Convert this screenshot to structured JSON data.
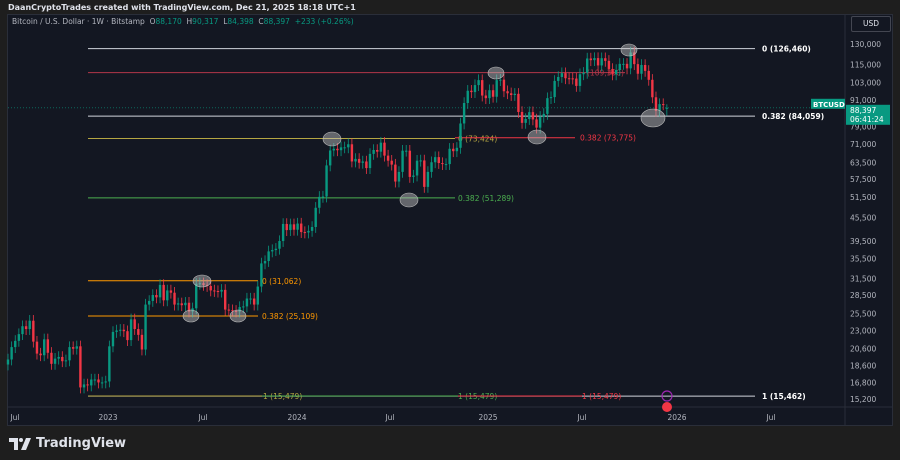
{
  "header": {
    "credit": "DaanCryptoTrades created with TradingView.com, Dec 21, 2025 18:18 UTC+1"
  },
  "legend": {
    "symbol": "Bitcoin / U.S. Dollar · 1W · Bitstamp",
    "o_label": "O",
    "o": "88,170",
    "h_label": "H",
    "h": "90,317",
    "l_label": "L",
    "l": "84,398",
    "c_label": "C",
    "c": "88,397",
    "change": "+233 (+0.26%)"
  },
  "currency_button": "USD",
  "price_tag": {
    "symbol": "BTCUSD",
    "price": "88,397",
    "countdown": "06:41:24"
  },
  "branding": {
    "logo_text": "TradingView"
  },
  "colors": {
    "background": "#131722",
    "up": "#089981",
    "down": "#f23645",
    "fib_white": "#d1d4dc",
    "fib_red": "#b2374a",
    "fib_olive": "#b5a642",
    "fib_green": "#4caf50",
    "fib_orange": "#ff9800"
  },
  "chart_data": {
    "type": "candlestick",
    "title": "Bitcoin / U.S. Dollar · 1W · Bitstamp",
    "y_scale": "log",
    "ylim": [
      14500,
      140000
    ],
    "y_ticks": [
      "130,000",
      "115,000",
      "103,000",
      "91,000",
      "79,000",
      "71,000",
      "63,500",
      "57,500",
      "51,500",
      "45,500",
      "39,500",
      "35,500",
      "31,500",
      "28,500",
      "25,500",
      "23,000",
      "20,600",
      "18,600",
      "16,800",
      "15,200"
    ],
    "x_ticks": [
      "Jul",
      "2023",
      "Jul",
      "2024",
      "Jul",
      "2025",
      "Jul",
      "2026",
      "Jul"
    ],
    "grid": false,
    "series": [
      {
        "interval": "1W",
        "first_week": "2022-06-27",
        "closes": [
          19300,
          20800,
          21600,
          22500,
          23600,
          23200,
          24400,
          21500,
          20000,
          19800,
          21800,
          20100,
          18800,
          19400,
          19600,
          19100,
          19200,
          20800,
          20600,
          20900,
          16300,
          16600,
          16500,
          17100,
          17100,
          16800,
          16800,
          16900,
          20900,
          22800,
          23000,
          23100,
          22900,
          21700,
          24600,
          23200,
          22400,
          20500,
          26900,
          27500,
          28500,
          28100,
          30300,
          27600,
          29300,
          28900,
          26900,
          27100,
          26800,
          27200,
          25800,
          26300,
          30500,
          30600,
          30300,
          30100,
          29300,
          29200,
          29100,
          29400,
          26100,
          26000,
          25900,
          25800,
          26500,
          26600,
          27900,
          27900,
          26900,
          30000,
          34500,
          35000,
          37100,
          37400,
          37700,
          39500,
          43800,
          42200,
          43700,
          42300,
          43900,
          41700,
          41600,
          42000,
          43000,
          48300,
          51600,
          51700,
          62400,
          68300,
          69000,
          68400,
          69600,
          69600,
          70900,
          63900,
          64900,
          63400,
          63900,
          61400,
          66900,
          68500,
          67800,
          71600,
          66200,
          64200,
          62700,
          56600,
          60000,
          68200,
          68200,
          58200,
          58700,
          64200,
          64300,
          54800,
          60000,
          63600,
          65600,
          63300,
          62900,
          62900,
          69000,
          68000,
          69400,
          80400,
          91000,
          98000,
          97200,
          101400,
          104500,
          95200,
          93700,
          98300,
          94500,
          104500,
          104800,
          97700,
          96500,
          95500,
          96200,
          86200,
          80700,
          82600,
          86100,
          82400,
          78400,
          83700,
          85200,
          93700,
          94300,
          104000,
          106500,
          109000,
          105700,
          105600,
          105500,
          100900,
          108300,
          109200,
          119100,
          117900,
          119400,
          114200,
          119300,
          117400,
          111800,
          108200,
          111100,
          115300,
          115300,
          112200,
          123500,
          115100,
          108600,
          114500,
          110500,
          104700,
          94200,
          86800,
          90400,
          90300,
          88397
        ]
      }
    ],
    "last_bar": {
      "open": 88170,
      "high": 90317,
      "low": 84398,
      "close": 88397
    },
    "current_price": 88397,
    "fib_levels": [
      {
        "label": "0 (126,460)",
        "price": 126460,
        "color": "#d1d4dc"
      },
      {
        "label": "(109,350)",
        "price": 109350,
        "color": "#b2374a"
      },
      {
        "label": "0.382 (84,059)",
        "price": 84059,
        "color": "#d1d4dc"
      },
      {
        "label": "0 (73,424)",
        "price": 73424,
        "color": "#b5a642"
      },
      {
        "label": "0.382 (73,775)",
        "price": 73775,
        "color": "#f23645"
      },
      {
        "label": "0.382 (51,289)",
        "price": 51289,
        "color": "#4caf50"
      },
      {
        "label": "0 (31,062)",
        "price": 31062,
        "color": "#ff9800"
      },
      {
        "label": "0.382 (25,109)",
        "price": 25109,
        "color": "#ff9800"
      },
      {
        "label": "1 (15,462)",
        "price": 15462,
        "color": "#d1d4dc"
      },
      {
        "label": "1 (15,479)",
        "price": 15479,
        "color": "#b5a642"
      },
      {
        "label": "1 (15,479)",
        "price": 15479,
        "color": "#4caf50"
      },
      {
        "label": "1 (15,479)",
        "price": 15479,
        "color": "#f23645"
      }
    ]
  }
}
